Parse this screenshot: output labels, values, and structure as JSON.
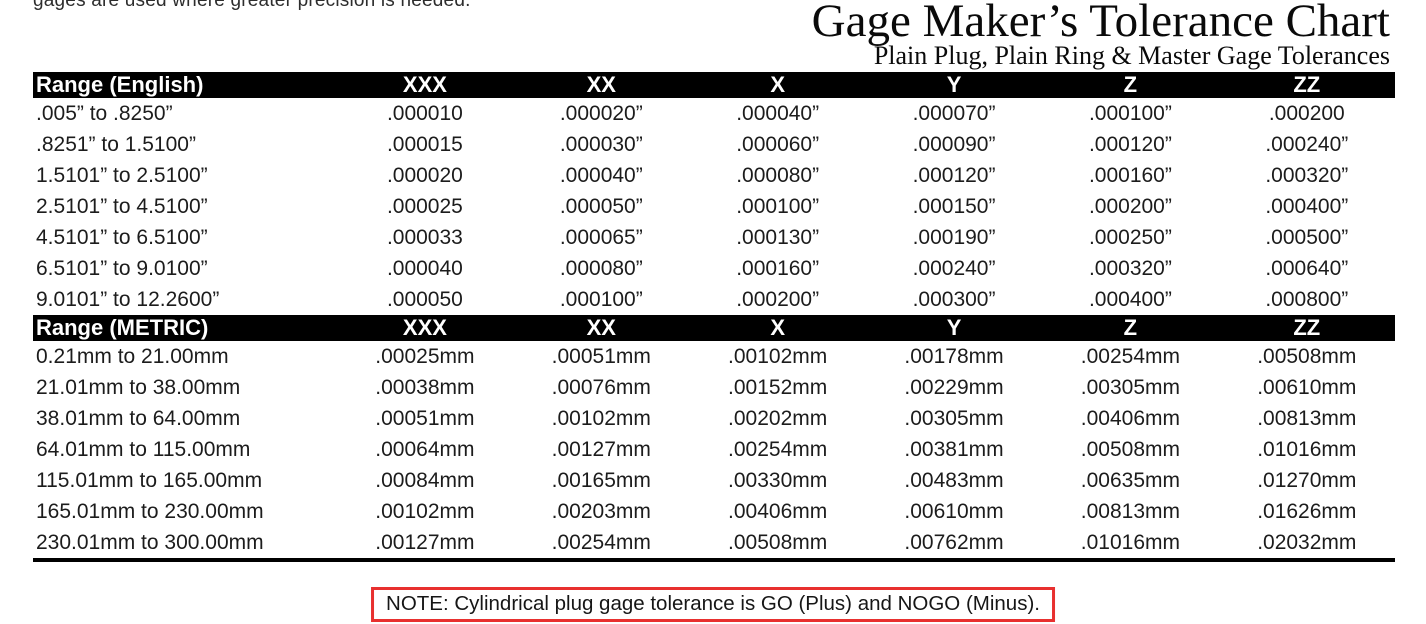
{
  "page": {
    "clipped_top_text": "gages are used where greater precision is needed.",
    "title": "Gage Maker’s Tolerance Chart",
    "subtitle": "Plain Plug, Plain Ring & Master Gage Tolerances",
    "note": "NOTE: Cylindrical plug gage tolerance is GO (Plus) and NOGO (Minus).",
    "colors": {
      "header_band": "#000000",
      "header_text": "#ffffff",
      "note_border": "#e8302f",
      "body_text": "#1c1c1c"
    }
  },
  "english_table": {
    "headers": [
      "Range (English)",
      "XXX",
      "XX",
      "X",
      "Y",
      "Z",
      "ZZ"
    ],
    "rows": [
      [
        ".005” to .8250”",
        ".000010",
        ".000020”",
        ".000040”",
        ".000070”",
        ".000100”",
        ".000200"
      ],
      [
        ".8251” to 1.5100”",
        ".000015",
        ".000030”",
        ".000060”",
        ".000090”",
        ".000120”",
        ".000240”"
      ],
      [
        "1.5101” to 2.5100”",
        ".000020",
        ".000040”",
        ".000080”",
        ".000120”",
        ".000160”",
        ".000320”"
      ],
      [
        "2.5101” to 4.5100”",
        ".000025",
        ".000050”",
        ".000100”",
        ".000150”",
        ".000200”",
        ".000400”"
      ],
      [
        "4.5101” to 6.5100”",
        ".000033",
        ".000065”",
        ".000130”",
        ".000190”",
        ".000250”",
        ".000500”"
      ],
      [
        "6.5101” to 9.0100”",
        ".000040",
        ".000080”",
        ".000160”",
        ".000240”",
        ".000320”",
        ".000640”"
      ],
      [
        "9.0101” to 12.2600”",
        ".000050",
        ".000100”",
        ".000200”",
        ".000300”",
        ".000400”",
        ".000800”"
      ]
    ]
  },
  "metric_table": {
    "headers": [
      "Range (METRIC)",
      "XXX",
      "XX",
      "X",
      "Y",
      "Z",
      "ZZ"
    ],
    "rows": [
      [
        "0.21mm to 21.00mm",
        ".00025mm",
        ".00051mm",
        ".00102mm",
        ".00178mm",
        ".00254mm",
        ".00508mm"
      ],
      [
        "21.01mm to 38.00mm",
        ".00038mm",
        ".00076mm",
        ".00152mm",
        ".00229mm",
        ".00305mm",
        ".00610mm"
      ],
      [
        "38.01mm to 64.00mm",
        ".00051mm",
        ".00102mm",
        ".00202mm",
        ".00305mm",
        ".00406mm",
        ".00813mm"
      ],
      [
        "64.01mm to 115.00mm",
        ".00064mm",
        ".00127mm",
        ".00254mm",
        ".00381mm",
        ".00508mm",
        ".01016mm"
      ],
      [
        "115.01mm to 165.00mm",
        ".00084mm",
        ".00165mm",
        ".00330mm",
        ".00483mm",
        ".00635mm",
        ".01270mm"
      ],
      [
        "165.01mm to 230.00mm",
        ".00102mm",
        ".00203mm",
        ".00406mm",
        ".00610mm",
        ".00813mm",
        ".01626mm"
      ],
      [
        "230.01mm to 300.00mm",
        ".00127mm",
        ".00254mm",
        ".00508mm",
        ".00762mm",
        ".01016mm",
        ".02032mm"
      ]
    ]
  }
}
